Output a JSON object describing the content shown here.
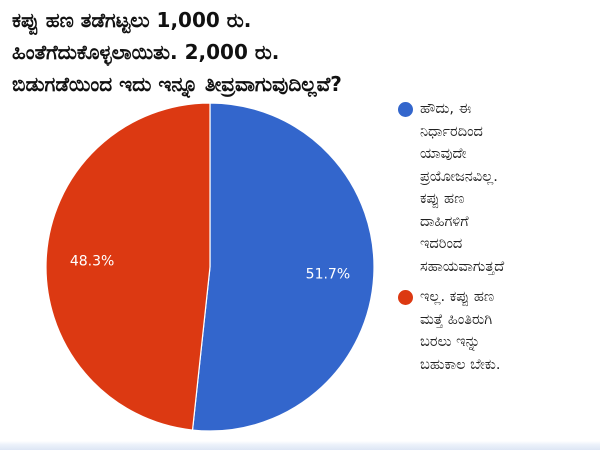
{
  "title_lines": [
    "ಕಪ್ಪು ಹಣ ತಡೆಗಟ್ಟಲು 1,000 ರು.",
    "ಹಿಂತೆಗೆದುಕೊಳ್ಳಲಾಯಿತು. 2,000 ರು.",
    "ಬಿಡುಗಡೆಯಿಂದ ಇದು ಇನ್ನೂ ತೀವ್ರವಾಗುವುದಿಲ್ಲವೆ?"
  ],
  "chart_data": {
    "type": "pie",
    "title": "ಕಪ್ಪು ಹಣ ತಡೆಗಟ್ಟಲು 1,000 ರು. ಹಿಂತೆಗೆದುಕೊಳ್ಳಲಾಯಿತು. 2,000 ರು. ಬಿಡುಗಡೆಯಿಂದ ಇದು ಇನ್ನೂ ತೀವ್ರವಾಗುವುದಿಲ್ಲವೆ?",
    "legend_position": "right",
    "slices": [
      {
        "name": "ಹೌದು, ಈ ನಿರ್ಧಾರದಿಂದ ಯಾವುದೇ ಪ್ರಯೋಜನವಿಲ್ಲ. ಕಪ್ಪು ಹಣ ದಾಹಿಗಳಿಗೆ ಇದರಿಂದ ಸಹಾಯವಾಗುತ್ತದೆ",
        "name_lines": [
          "ಹೌದು, ಈ",
          "ನಿರ್ಧಾರದಿಂದ",
          "ಯಾವುದೇ",
          "ಪ್ರಯೋಜನವಿಲ್ಲ.",
          "ಕಪ್ಪು ಹಣ",
          "ದಾಹಿಗಳಿಗೆ",
          "ಇದರಿಂದ",
          "ಸಹಾಯವಾಗುತ್ತದೆ"
        ],
        "value": 51.7,
        "label": "51.7%",
        "color": "#3366cc"
      },
      {
        "name": "ಇಲ್ಲ. ಕಪ್ಪು ಹಣ ಮತ್ತೆ ಹಿಂತಿರುಗಿ ಬರಲು ಇನ್ನು ಬಹುಕಾಲ ಬೇಕು.",
        "name_lines": [
          "ಇಲ್ಲ. ಕಪ್ಪು ಹಣ",
          "ಮತ್ತೆ ಹಿಂತಿರುಗಿ",
          "ಬರಲು ಇನ್ನು",
          "ಬಹುಕಾಲ ಬೇಕು."
        ],
        "value": 48.3,
        "label": "48.3%",
        "color": "#dc3912"
      }
    ]
  }
}
